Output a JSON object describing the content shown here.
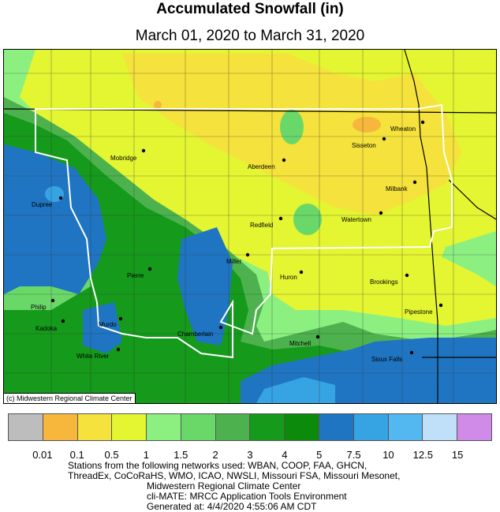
{
  "title": "Accumulated Snowfall (in)",
  "subtitle": "March 01, 2020 to March 31, 2020",
  "credit": "(c) Midwestern Regional Climate Center",
  "legend": {
    "colors": [
      "#bdbdbd",
      "#f7b73c",
      "#f5e23c",
      "#e4f532",
      "#8cf081",
      "#6ad869",
      "#4db24e",
      "#159a1b",
      "#0b8a0b",
      "#1f75c2",
      "#36a3e3",
      "#52b8ef",
      "#bfe0f8",
      "#d08ae8"
    ],
    "labels": [
      "0.01",
      "0.1",
      "0.5",
      "1",
      "1.5",
      "2",
      "3",
      "4",
      "5",
      "7.5",
      "10",
      "12.5",
      "15"
    ]
  },
  "cities": [
    {
      "name": "Wheaton"
    },
    {
      "name": "Sisseton"
    },
    {
      "name": "Mobridge"
    },
    {
      "name": "Aberdeen"
    },
    {
      "name": "Milbank"
    },
    {
      "name": "Dupree"
    },
    {
      "name": "Redfield"
    },
    {
      "name": "Watertown"
    },
    {
      "name": "Miller"
    },
    {
      "name": "Pierre"
    },
    {
      "name": "Huron"
    },
    {
      "name": "Brookings"
    },
    {
      "name": "Philip"
    },
    {
      "name": "Kadoka"
    },
    {
      "name": "Murdo"
    },
    {
      "name": "Chamberlain"
    },
    {
      "name": "Pipestone"
    },
    {
      "name": "Mitchell"
    },
    {
      "name": "White River"
    },
    {
      "name": "Sioux Falls"
    }
  ],
  "footer": {
    "line1": "Stations from the following networks used: WBAN, COOP, FAA, GHCN,",
    "line2": "ThreadEx, CoCoRaHS, WMO, ICAO, NWSLI, Missouri FSA, Missouri Mesonet,",
    "line3": "Midwestern Regional Climate Center",
    "line4": "cli-MATE: MRCC Application Tools Environment",
    "line5": "Generated at: 4/4/2020 4:55:06 AM CDT"
  }
}
